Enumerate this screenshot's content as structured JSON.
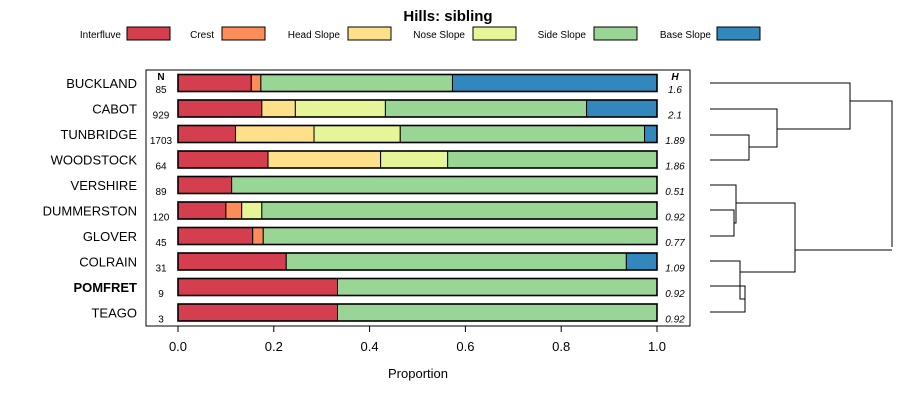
{
  "chart_data": {
    "type": "bar",
    "orientation": "horizontal",
    "stacked": true,
    "title": "Hills: sibling",
    "xlabel": "Proportion",
    "ylabel": "",
    "xlim": [
      0,
      1
    ],
    "xticks": [
      "0.0",
      "0.2",
      "0.4",
      "0.6",
      "0.8",
      "1.0"
    ],
    "n_header": "N",
    "h_header": "H",
    "categories": [
      "BUCKLAND",
      "CABOT",
      "TUNBRIDGE",
      "WOODSTOCK",
      "VERSHIRE",
      "DUMMERSTON",
      "GLOVER",
      "COLRAIN",
      "POMFRET",
      "TEAGO"
    ],
    "highlight": "POMFRET",
    "n": [
      "85",
      "929",
      "1703",
      "64",
      "89",
      "120",
      "45",
      "31",
      "9",
      "3"
    ],
    "h": [
      "1.6",
      "2.1",
      "1.89",
      "1.86",
      "0.51",
      "0.92",
      "0.77",
      "1.09",
      "0.92",
      "0.92"
    ],
    "series": [
      {
        "name": "Interfluve",
        "color": "#d53e4f",
        "values": [
          0.153,
          0.175,
          0.12,
          0.188,
          0.112,
          0.1,
          0.156,
          0.226,
          0.333,
          0.333
        ]
      },
      {
        "name": "Crest",
        "color": "#fc8d59",
        "values": [
          0.02,
          0.0,
          0.0,
          0.0,
          0.0,
          0.033,
          0.022,
          0.0,
          0.0,
          0.0
        ]
      },
      {
        "name": "Head Slope",
        "color": "#fee08b",
        "values": [
          0.0,
          0.07,
          0.164,
          0.235,
          0.0,
          0.0,
          0.0,
          0.0,
          0.0,
          0.0
        ]
      },
      {
        "name": "Nose Slope",
        "color": "#e6f598",
        "values": [
          0.0,
          0.188,
          0.18,
          0.14,
          0.0,
          0.042,
          0.0,
          0.0,
          0.0,
          0.0
        ]
      },
      {
        "name": "Side Slope",
        "color": "#99d594",
        "values": [
          0.4,
          0.42,
          0.51,
          0.437,
          0.888,
          0.825,
          0.822,
          0.71,
          0.667,
          0.667
        ]
      },
      {
        "name": "Base Slope",
        "color": "#3288bd",
        "values": [
          0.427,
          0.147,
          0.026,
          0.0,
          0.0,
          0.0,
          0.0,
          0.064,
          0.0,
          0.0
        ]
      }
    ]
  }
}
